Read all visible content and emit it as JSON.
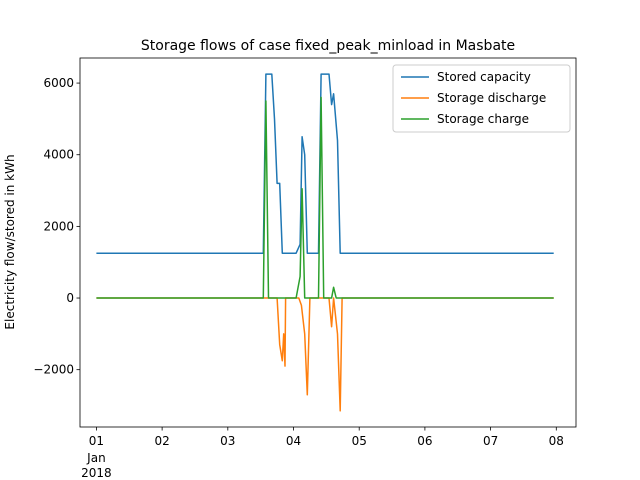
{
  "chart_data": {
    "type": "line",
    "title": "Storage flows of case fixed_peak_minload in Masbate",
    "xlabel": "",
    "ylabel": "Electricity flow/stored in kWh",
    "xlim": [
      -0.25,
      7.3
    ],
    "ylim": [
      -3600,
      6700
    ],
    "x_tick_values": [
      0,
      1,
      2,
      3,
      4,
      5,
      6,
      7
    ],
    "x_tick_labels": [
      "01",
      "02",
      "03",
      "04",
      "05",
      "06",
      "07",
      "08"
    ],
    "x_tick_sublabel": [
      "Jan",
      "2018"
    ],
    "y_ticks": [
      -2000,
      0,
      2000,
      4000,
      6000
    ],
    "y_tick_labels": [
      "−2000",
      "0",
      "2000",
      "4000",
      "6000"
    ],
    "grid": false,
    "legend_position": "top-right",
    "series": [
      {
        "name": "Stored capacity",
        "color": "#1f77b4",
        "points": [
          [
            0,
            1250
          ],
          [
            2.54,
            1250
          ],
          [
            2.58,
            6250
          ],
          [
            2.67,
            6250
          ],
          [
            2.71,
            5000
          ],
          [
            2.75,
            3200
          ],
          [
            2.79,
            3200
          ],
          [
            2.83,
            1250
          ],
          [
            3.04,
            1250
          ],
          [
            3.1,
            1500
          ],
          [
            3.13,
            4500
          ],
          [
            3.17,
            4000
          ],
          [
            3.21,
            1250
          ],
          [
            3.38,
            1250
          ],
          [
            3.42,
            6250
          ],
          [
            3.54,
            6250
          ],
          [
            3.58,
            5400
          ],
          [
            3.61,
            5700
          ],
          [
            3.67,
            4400
          ],
          [
            3.71,
            1250
          ],
          [
            6.96,
            1250
          ]
        ]
      },
      {
        "name": "Storage discharge",
        "color": "#ff7f0e",
        "points": [
          [
            0,
            0
          ],
          [
            2.75,
            0
          ],
          [
            2.79,
            -1300
          ],
          [
            2.83,
            -1750
          ],
          [
            2.85,
            -1000
          ],
          [
            2.87,
            -1900
          ],
          [
            2.88,
            0
          ],
          [
            3.08,
            0
          ],
          [
            3.12,
            -200
          ],
          [
            3.17,
            -1000
          ],
          [
            3.21,
            -2700
          ],
          [
            3.25,
            0
          ],
          [
            3.54,
            0
          ],
          [
            3.58,
            -800
          ],
          [
            3.61,
            0
          ],
          [
            3.67,
            -1000
          ],
          [
            3.71,
            -3150
          ],
          [
            3.74,
            0
          ],
          [
            6.96,
            0
          ]
        ]
      },
      {
        "name": "Storage charge",
        "color": "#2ca02c",
        "points": [
          [
            0,
            0
          ],
          [
            2.54,
            0
          ],
          [
            2.58,
            5500
          ],
          [
            2.62,
            0
          ],
          [
            3.04,
            0
          ],
          [
            3.1,
            600
          ],
          [
            3.13,
            3050
          ],
          [
            3.17,
            0
          ],
          [
            3.38,
            0
          ],
          [
            3.42,
            5600
          ],
          [
            3.46,
            0
          ],
          [
            3.58,
            0
          ],
          [
            3.61,
            300
          ],
          [
            3.65,
            0
          ],
          [
            6.96,
            0
          ]
        ]
      }
    ]
  }
}
